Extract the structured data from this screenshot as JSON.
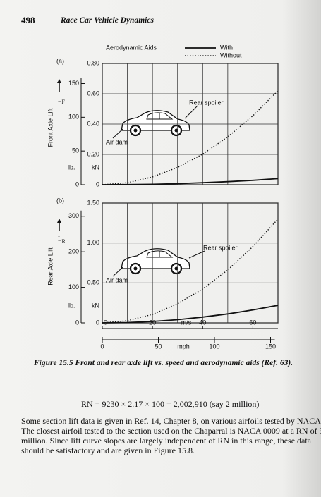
{
  "header": {
    "page_number": "498",
    "title": "Race Car Vehicle Dynamics"
  },
  "chart_data": [
    {
      "type": "line",
      "panel": "(a)",
      "legend_title": "Aerodynamic Aids",
      "legend": "top-right",
      "y_label": "Front Axle Lift",
      "symbol": "L",
      "symbol_sub": "F",
      "y_unit": "kN",
      "y2_unit": "lb.",
      "annotations": [
        "Rear spoiler",
        "Air dam"
      ],
      "x": [
        0,
        10,
        20,
        30,
        40,
        50,
        60,
        70
      ],
      "xlim": [
        0,
        70
      ],
      "ylim": [
        0,
        0.8
      ],
      "yticks": [
        0,
        {
          "value": 0.2,
          "label": "0.20"
        },
        {
          "value": 0.4,
          "label": "0.40"
        },
        {
          "value": 0.6,
          "label": "0.60"
        },
        {
          "value": 0.8,
          "label": "0.80"
        }
      ],
      "y2lim": [
        0,
        179.8
      ],
      "y2ticks": [
        0,
        50,
        100,
        150
      ],
      "grid": true,
      "series": [
        {
          "name": "With",
          "color": "#111111",
          "style": "solid",
          "values": [
            0,
            0.001,
            0.003,
            0.007,
            0.013,
            0.02,
            0.029,
            0.04
          ]
        },
        {
          "name": "Without",
          "color": "#111111",
          "style": "dotted",
          "values": [
            0,
            0.013,
            0.051,
            0.114,
            0.202,
            0.316,
            0.455,
            0.62
          ]
        }
      ]
    },
    {
      "type": "line",
      "panel": "(b)",
      "y_label": "Rear Axle Lift",
      "symbol": "L",
      "symbol_sub": "R",
      "y_unit": "kN",
      "y2_unit": "lb.",
      "annotations": [
        "Rear spoiler",
        "Air dam"
      ],
      "x": [
        0,
        10,
        20,
        30,
        40,
        50,
        60,
        70
      ],
      "xlim": [
        0,
        70
      ],
      "xticks": [
        0,
        20,
        40,
        60
      ],
      "x_label": "m/s",
      "x2lim": [
        0,
        156.6
      ],
      "x2ticks": [
        0,
        50,
        100,
        150
      ],
      "x2_label": "mph",
      "ylim": [
        0,
        1.5
      ],
      "yticks": [
        0,
        {
          "value": 0.5,
          "label": "0.50"
        },
        {
          "value": 1.0,
          "label": "1.00"
        },
        {
          "value": 1.5,
          "label": "1.50"
        }
      ],
      "y2lim": [
        0,
        337.2
      ],
      "y2ticks": [
        0,
        100,
        200,
        300
      ],
      "grid": true,
      "series": [
        {
          "color": "#111111",
          "style": "solid",
          "values": [
            0,
            0.004,
            0.018,
            0.04,
            0.072,
            0.112,
            0.162,
            0.22
          ]
        },
        {
          "color": "#111111",
          "style": "dotted",
          "values": [
            0,
            0.027,
            0.106,
            0.239,
            0.424,
            0.663,
            0.955,
            1.3
          ]
        }
      ]
    }
  ],
  "caption": "Figure 15.5  Front and rear axle lift vs. speed and aerodynamic aids (Ref. 63).",
  "equation": "RN = 9230 × 2.17 × 100 = 2,002,910  (say 2 million)",
  "paragraph": [
    "Some section lift data is given in Ref. 14, Chapter 8, on various airfoils tested by NACA.",
    "The closest airfoil tested to the section used on the Chaparral is NACA 0009 at a RN of 3",
    "million.  Since lift curve slopes are largely independent of RN in this range, these data",
    "should be satisfactory and are given in Figure 15.8."
  ]
}
